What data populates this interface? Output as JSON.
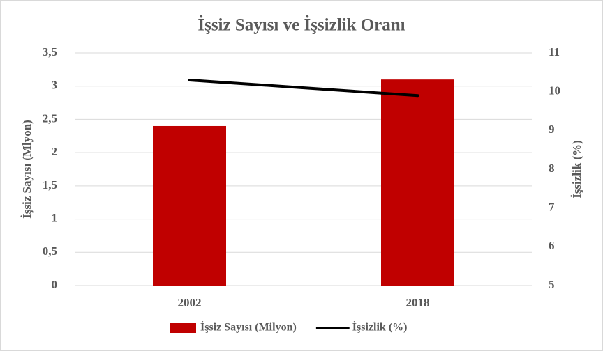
{
  "chart_data": {
    "type": "combo",
    "title": "İşsiz Sayısı ve İşsizlik Oranı",
    "categories": [
      "2002",
      "2018"
    ],
    "series": [
      {
        "name": "İşsiz Sayısı (Milyon)",
        "type": "bar",
        "color": "#c00000",
        "values": [
          2.4,
          3.1
        ]
      },
      {
        "name": "İşsizlik (%)",
        "type": "line",
        "axis": "y2",
        "color": "#000000",
        "values": [
          10.3,
          9.9
        ]
      }
    ],
    "ylabel": "İşsiz Sayısı (Mlyon)",
    "y2label": "İşsizlik (%)",
    "ylim": [
      0,
      3.5
    ],
    "yticks": [
      0,
      {
        "value": 0.5,
        "label": "0,5"
      },
      1,
      {
        "value": 1.5,
        "label": "1,5"
      },
      2,
      {
        "value": 2.5,
        "label": "2,5"
      },
      3,
      {
        "value": 3.5,
        "label": "3,5"
      }
    ],
    "y2lim": [
      5,
      11
    ],
    "y2ticks": [
      5,
      6,
      7,
      8,
      9,
      10,
      11
    ],
    "grid": true,
    "legend": "bottom"
  }
}
